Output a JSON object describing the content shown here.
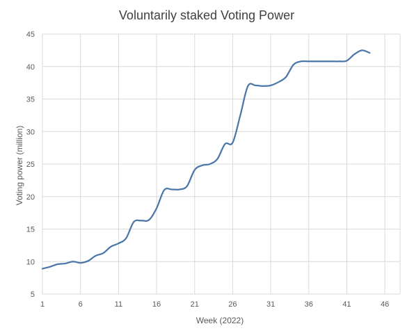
{
  "chart_data": {
    "type": "line",
    "title": "Voluntarily staked Voting Power",
    "xlabel": "Week (2022)",
    "ylabel": "Voting power (million)",
    "xlim": [
      1,
      48
    ],
    "ylim": [
      5,
      45
    ],
    "x_ticks": [
      1,
      6,
      11,
      16,
      21,
      26,
      31,
      36,
      41,
      46
    ],
    "y_ticks": [
      5,
      10,
      15,
      20,
      25,
      30,
      35,
      40,
      45
    ],
    "grid": true,
    "legend": "none",
    "colors": {
      "line": "#4a76a8",
      "grid": "#d9d9d9"
    },
    "series": [
      {
        "x": [
          1,
          2,
          3,
          4,
          5,
          6,
          7,
          8,
          9,
          10,
          11,
          12,
          13,
          14,
          15,
          16,
          17,
          18,
          19,
          20,
          21,
          22,
          23,
          24,
          25,
          26,
          27,
          28,
          29,
          30,
          31,
          32,
          33,
          34,
          35,
          36,
          37,
          38,
          39,
          40,
          41,
          42,
          43,
          44
        ],
        "values": [
          8.9,
          9.2,
          9.6,
          9.7,
          10.0,
          9.8,
          10.1,
          10.9,
          11.3,
          12.3,
          12.8,
          13.6,
          16.1,
          16.3,
          16.4,
          18.2,
          21.0,
          21.1,
          21.1,
          21.6,
          24.1,
          24.8,
          25.0,
          25.8,
          28.1,
          28.3,
          32.5,
          37.0,
          37.1,
          37.0,
          37.1,
          37.6,
          38.4,
          40.3,
          40.8,
          40.8,
          40.8,
          40.8,
          40.8,
          40.8,
          40.9,
          41.9,
          42.5,
          42.1
        ]
      }
    ]
  }
}
